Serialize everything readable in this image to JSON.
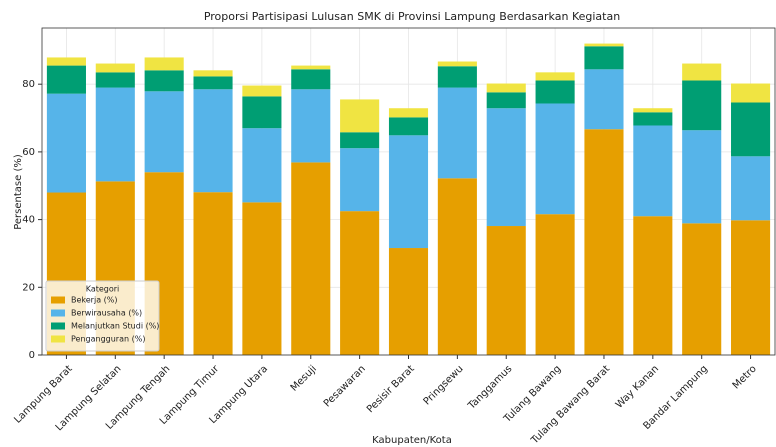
{
  "chart_data": {
    "type": "stacked_bar",
    "title": "Proporsi Partisipasi Lulusan SMK di Provinsi Lampung Berdasarkan Kegiatan",
    "x_label": "Kabupaten/Kota",
    "y_label": "Persentase (%)",
    "categories": [
      "Lampung Barat",
      "Lampung Selatan",
      "Lampung Tengah",
      "Lampung Timur",
      "Lampung Utara",
      "Mesuji",
      "Pesawaran",
      "Pesisir Barat",
      "Pringsewu",
      "Tanggamus",
      "Tulang Bawang",
      "Tulang Bawang Barat",
      "Way Kanan",
      "Bandar Lampung",
      "Metro"
    ],
    "series": [
      {
        "name": "Bekerja (%)",
        "color": "#E69F00",
        "values": [
          48,
          51.3,
          54,
          48.1,
          45.1,
          56.9,
          42.5,
          31.6,
          52.2,
          38.1,
          41.6,
          66.7,
          41,
          38.9,
          39.8
        ]
      },
      {
        "name": "Berwirausaha (%)",
        "color": "#56B4E9",
        "values": [
          29.2,
          27.7,
          23.9,
          30.4,
          21.9,
          21.6,
          18.6,
          33.3,
          26.8,
          34.8,
          32.7,
          17.7,
          26.8,
          27.5,
          18.9
        ]
      },
      {
        "name": "Melanjutkan Studi (%)",
        "color": "#009E73",
        "values": [
          8.3,
          4.5,
          6.2,
          3.8,
          9.4,
          5.9,
          4.7,
          5.3,
          6.3,
          4.7,
          6.8,
          6.8,
          3.9,
          14.7,
          15.9
        ]
      },
      {
        "name": "Pengangguran (%)",
        "color": "#F0E442",
        "values": [
          2.4,
          2.6,
          3.8,
          1.8,
          3.2,
          1.1,
          9.7,
          2.7,
          1.4,
          2.6,
          2.4,
          0.8,
          1.2,
          5,
          5.6
        ]
      }
    ],
    "ylim": [
      0,
      96.6
    ],
    "yticks": [
      0,
      20,
      40,
      60,
      80
    ],
    "grid": true,
    "legend_title": "Kategori",
    "legend_position": "lower left"
  }
}
